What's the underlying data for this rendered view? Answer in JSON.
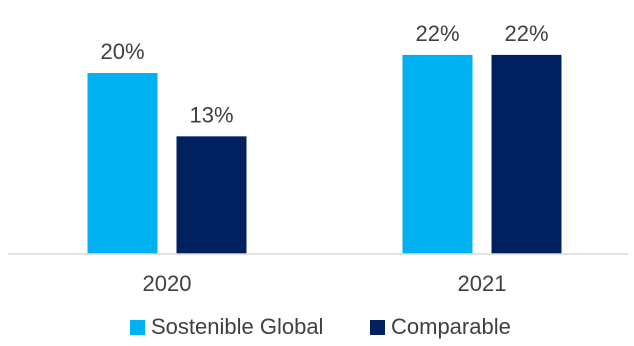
{
  "chart_data": {
    "type": "bar",
    "categories": [
      "2020",
      "2021"
    ],
    "series": [
      {
        "name": "Sostenible Global",
        "values": [
          20,
          22
        ],
        "labels": [
          "20%",
          "22%"
        ],
        "color": "#00B0F0"
      },
      {
        "name": "Comparable",
        "values": [
          13,
          22
        ],
        "labels": [
          "13%",
          "22%"
        ],
        "color": "#002060"
      }
    ],
    "ylim": [
      0,
      26
    ],
    "grid": false,
    "legend_position": "bottom"
  }
}
